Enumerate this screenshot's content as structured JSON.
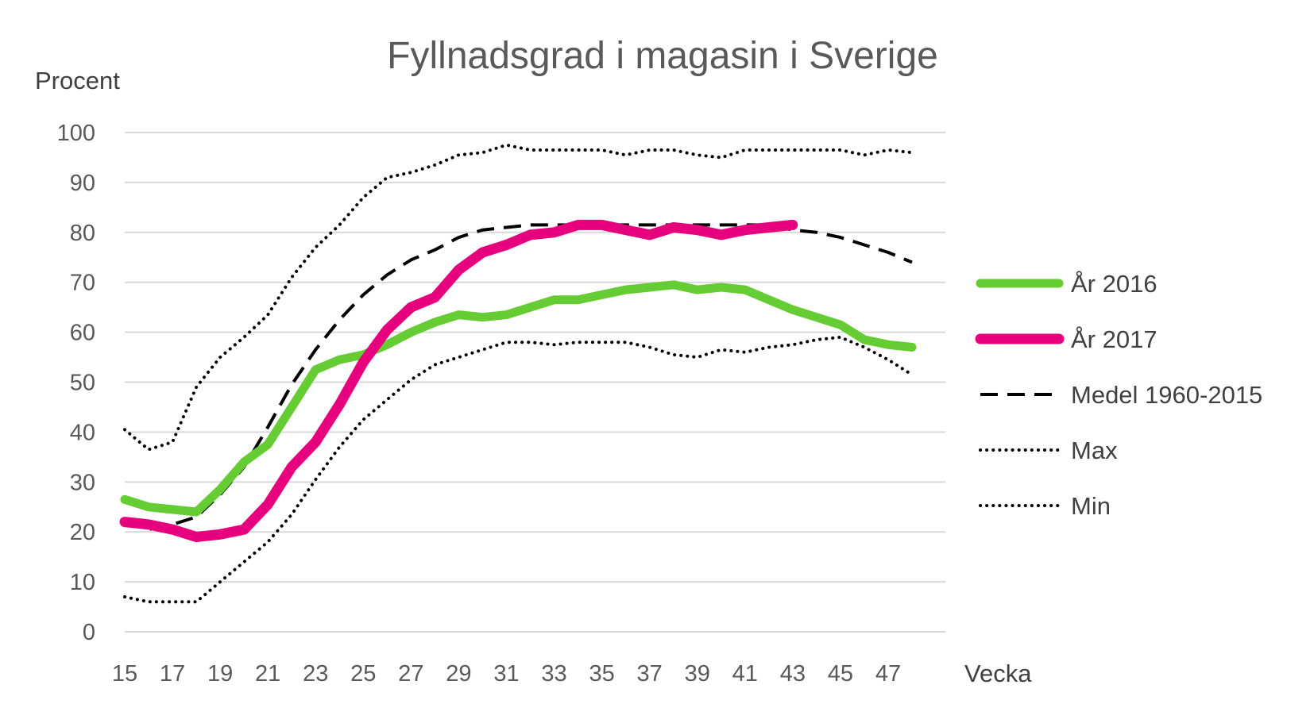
{
  "chart_data": {
    "type": "line",
    "title": "Fyllnadsgrad i magasin i Sverige",
    "ylabel": "Procent",
    "xlabel": "Vecka",
    "ylim": [
      0,
      100
    ],
    "yticks": [
      0,
      10,
      20,
      30,
      40,
      50,
      60,
      70,
      80,
      90,
      100
    ],
    "xlim": [
      15,
      48
    ],
    "xticks": [
      15,
      17,
      19,
      21,
      23,
      25,
      27,
      29,
      31,
      33,
      35,
      37,
      39,
      41,
      43,
      45,
      47
    ],
    "grid": true,
    "legend_position": "right",
    "x": [
      15,
      16,
      17,
      18,
      19,
      20,
      21,
      22,
      23,
      24,
      25,
      26,
      27,
      28,
      29,
      30,
      31,
      32,
      33,
      34,
      35,
      36,
      37,
      38,
      39,
      40,
      41,
      42,
      43,
      44,
      45,
      46,
      47,
      48
    ],
    "series": [
      {
        "name": "År 2016",
        "color": "#66cc33",
        "style": "solid",
        "width": 11,
        "values": [
          26.5,
          25,
          24.5,
          24,
          28.5,
          34,
          37.5,
          45,
          52.5,
          54.5,
          55.5,
          57.5,
          60,
          62,
          63.5,
          63,
          63.5,
          65,
          66.5,
          66.5,
          67.5,
          68.5,
          69,
          69.5,
          68.5,
          69,
          68.5,
          66.5,
          64.5,
          63,
          61.5,
          58.5,
          57.5,
          57
        ]
      },
      {
        "name": "År 2017",
        "color": "#e6007e",
        "style": "solid",
        "width": 13,
        "values": [
          22,
          21.5,
          20.5,
          19,
          19.5,
          20.5,
          25.5,
          33,
          38,
          45.5,
          54,
          60.5,
          65,
          67,
          72.5,
          76,
          77.5,
          79.5,
          80,
          81.5,
          81.5,
          80.5,
          79.5,
          81,
          80.5,
          79.5,
          80.5,
          81,
          81.5,
          null,
          null,
          null,
          null,
          null
        ]
      },
      {
        "name": "Medel 1960-2015",
        "color": "#000000",
        "style": "dashed",
        "width": 4,
        "values": [
          22.5,
          20.5,
          21.5,
          23,
          27.5,
          33,
          41,
          49.5,
          56.5,
          62.5,
          67.5,
          71.5,
          74.5,
          76.5,
          79,
          80.5,
          81,
          81.5,
          81.5,
          81.5,
          81.5,
          81.5,
          81.5,
          81.5,
          81.5,
          81.5,
          81.5,
          81.5,
          80.5,
          80,
          79,
          77.5,
          76,
          74
        ]
      },
      {
        "name": "Max",
        "color": "#000000",
        "style": "dotted",
        "width": 4,
        "values": [
          40.5,
          36.5,
          38,
          49,
          55,
          59,
          63.5,
          71,
          77,
          81.5,
          87,
          91,
          92,
          93.5,
          95.5,
          96,
          97.5,
          96.5,
          96.5,
          96.5,
          96.5,
          95.5,
          96.5,
          96.5,
          95.5,
          95,
          96.5,
          96.5,
          96.5,
          96.5,
          96.5,
          95.5,
          96.5,
          96
        ]
      },
      {
        "name": "Min",
        "color": "#000000",
        "style": "dotted",
        "width": 4,
        "values": [
          7,
          6,
          6,
          6,
          10,
          14,
          18,
          23.5,
          30.5,
          37,
          42.5,
          46.5,
          50.5,
          53.5,
          55,
          56.5,
          58,
          58,
          57.5,
          58,
          58,
          58,
          57,
          55.5,
          55,
          56.5,
          56,
          57,
          57.5,
          58.5,
          59,
          57,
          54.5,
          51.5
        ]
      }
    ]
  }
}
